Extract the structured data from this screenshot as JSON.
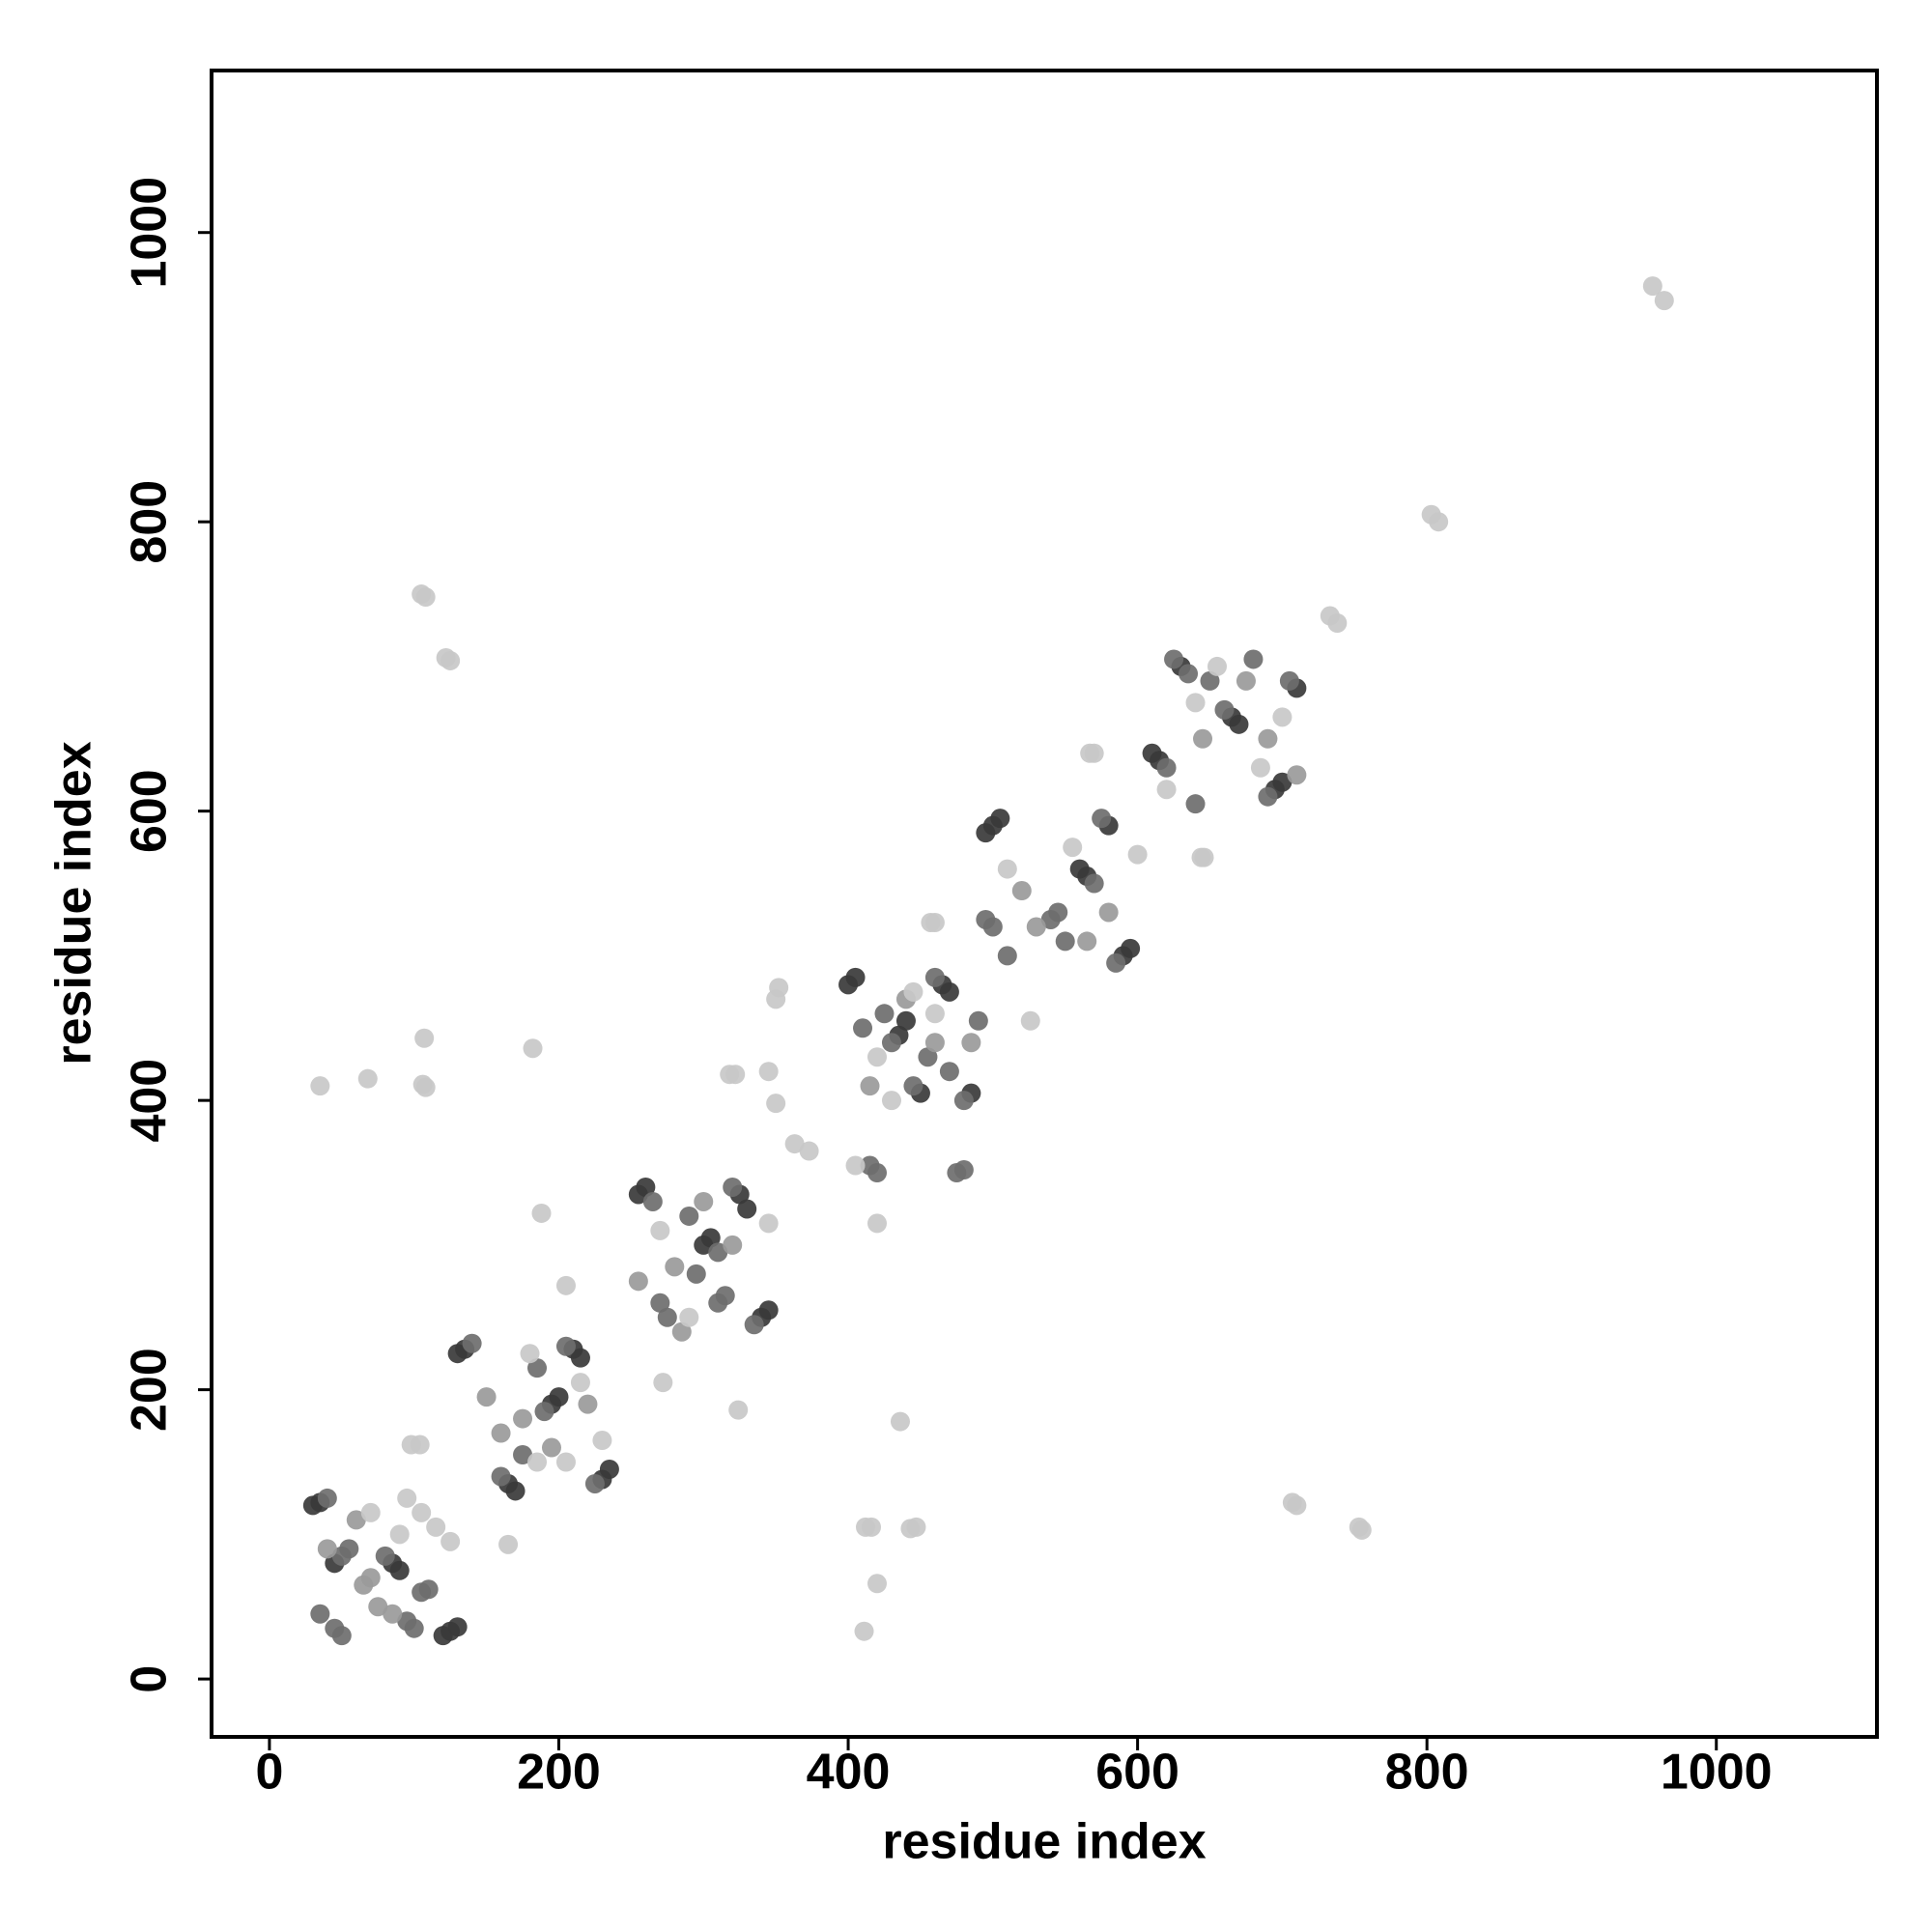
{
  "chart_data": {
    "type": "scatter",
    "x_label": "residue index",
    "y_label": "residue index",
    "xlim": [
      -40,
      1111
    ],
    "ylim": [
      -40,
      1112
    ],
    "xticks": [
      0,
      200,
      400,
      600,
      800,
      1000
    ],
    "yticks": [
      0,
      200,
      400,
      600,
      800,
      1000
    ],
    "series": [
      {
        "color": "#3a3a3a",
        "x": [
          30,
          35,
          45,
          85,
          90,
          120,
          125,
          130,
          130,
          135,
          165,
          170,
          195,
          200,
          210,
          215,
          230,
          235,
          255,
          260,
          300,
          305,
          325,
          330,
          340,
          345,
          400,
          405,
          435,
          440,
          450,
          465,
          470,
          485,
          495,
          500,
          505,
          560,
          565,
          580,
          590,
          595,
          610,
          615,
          630,
          665,
          670,
          695,
          700,
          710
        ],
        "y": [
          120,
          122,
          80,
          80,
          75,
          30,
          33,
          36,
          225,
          228,
          135,
          130,
          190,
          195,
          228,
          222,
          138,
          145,
          335,
          340,
          300,
          305,
          335,
          325,
          250,
          255,
          480,
          485,
          445,
          455,
          405,
          480,
          475,
          405,
          585,
          590,
          595,
          560,
          555,
          590,
          500,
          505,
          640,
          635,
          700,
          665,
          660,
          615,
          620,
          685
        ]
      },
      {
        "color": "#6e6e6e",
        "x": [
          40,
          50,
          55,
          80,
          95,
          100,
          50,
          45,
          35,
          105,
          110,
          140,
          160,
          190,
          205,
          225,
          185,
          175,
          265,
          310,
          320,
          335,
          270,
          275,
          310,
          315,
          290,
          295,
          410,
          430,
          445,
          460,
          480,
          490,
          475,
          480,
          415,
          420,
          425,
          455,
          470,
          495,
          500,
          510,
          570,
          575,
          585,
          540,
          545,
          550,
          620,
          625,
          635,
          660,
          690,
          705,
          680,
          640,
          650
        ],
        "y": [
          125,
          85,
          90,
          85,
          40,
          35,
          30,
          35,
          45,
          60,
          62,
          232,
          140,
          185,
          230,
          135,
          215,
          155,
          330,
          295,
          340,
          245,
          260,
          250,
          260,
          265,
          320,
          280,
          450,
          440,
          410,
          485,
          400,
          455,
          350,
          352,
          355,
          350,
          460,
          430,
          420,
          525,
          520,
          500,
          550,
          595,
          495,
          525,
          530,
          510,
          630,
          705,
          695,
          670,
          610,
          690,
          705,
          605,
          690
        ]
      },
      {
        "color": "#9a9a9a",
        "x": [
          60,
          75,
          85,
          65,
          70,
          40,
          150,
          160,
          175,
          195,
          220,
          280,
          285,
          300,
          255,
          320,
          415,
          440,
          460,
          485,
          520,
          530,
          565,
          580,
          645,
          675,
          690,
          710
        ],
        "y": [
          110,
          50,
          45,
          65,
          70,
          90,
          195,
          170,
          180,
          160,
          190,
          285,
          240,
          330,
          275,
          300,
          410,
          470,
          440,
          440,
          545,
          520,
          510,
          530,
          650,
          690,
          650,
          625
        ]
      },
      {
        "color": "#c8c8c8",
        "x": [
          956,
          964,
          803,
          808,
          733,
          738,
          105,
          108,
          122,
          125,
          35,
          68,
          107,
          106,
          108,
          182,
          188,
          104,
          98,
          165,
          363,
          373,
          350,
          412,
          416,
          420,
          411,
          436,
          447,
          443,
          707,
          710,
          753,
          755,
          567,
          570,
          644,
          646,
          457,
          460,
          526,
          318,
          322,
          205,
          272,
          324,
          420,
          70,
          95,
          105,
          115,
          125,
          90,
          180,
          205,
          185,
          215,
          230,
          345,
          270,
          290,
          420,
          445,
          430,
          460,
          405,
          345,
          350,
          352,
          555,
          510,
          600,
          620,
          655,
          700,
          640,
          685
        ],
        "y": [
          963,
          953,
          805,
          800,
          735,
          730,
          750,
          748,
          706,
          704,
          410,
          415,
          443,
          411,
          409,
          436,
          322,
          162,
          162,
          93,
          370,
          365,
          398,
          105,
          105,
          66,
          33,
          178,
          105,
          104,
          122,
          120,
          105,
          103,
          640,
          640,
          568,
          568,
          523,
          523,
          455,
          418,
          418,
          272,
          205,
          186,
          315,
          115,
          125,
          115,
          105,
          95,
          100,
          225,
          150,
          150,
          205,
          165,
          315,
          310,
          250,
          430,
          475,
          400,
          460,
          355,
          420,
          470,
          478,
          575,
          560,
          570,
          615,
          700,
          665,
          675,
          630
        ]
      }
    ]
  }
}
